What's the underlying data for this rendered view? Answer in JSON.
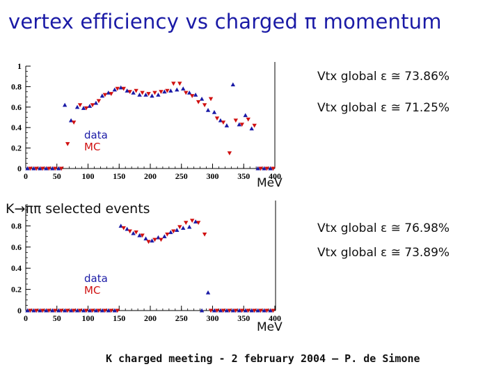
{
  "title": "vertex efficiency vs charged π momentum",
  "subtitle": "K→ππ selected events",
  "footer": "K charged meeting - 2 february 2004 – P. de Simone",
  "colors": {
    "data": "#1a1aa6",
    "mc": "#d01010"
  },
  "chart_data": [
    {
      "type": "scatter",
      "xlabel": "MeV",
      "xlim": [
        0,
        400
      ],
      "ylim": [
        0,
        1
      ],
      "x_ticks": [
        0,
        50,
        100,
        150,
        200,
        250,
        300,
        350,
        400
      ],
      "y_ticks": [
        0,
        0.2,
        0.4,
        0.6,
        0.8,
        1
      ],
      "y_tick_labels": [
        "0",
        "0.2",
        "0.4",
        "0.6",
        "0.8",
        "1"
      ],
      "legend": [
        "data",
        "MC"
      ],
      "annotations": [
        "Vtx global ε ≅ 73.86%",
        "Vtx global ε ≅ 71.25%"
      ],
      "series": [
        {
          "name": "data",
          "marker": "triangle-up",
          "x": [
            5,
            15,
            25,
            35,
            45,
            55,
            65,
            75,
            85,
            95,
            105,
            115,
            125,
            135,
            145,
            155,
            165,
            175,
            185,
            195,
            205,
            215,
            225,
            235,
            245,
            255,
            265,
            275,
            285,
            295,
            305,
            315,
            325,
            335,
            345,
            355,
            365,
            375,
            385,
            395
          ],
          "y": [
            0,
            0,
            0,
            0,
            0,
            0,
            0.62,
            0.47,
            0.6,
            0.59,
            0.61,
            0.64,
            0.71,
            0.74,
            0.77,
            0.79,
            0.76,
            0.74,
            0.72,
            0.72,
            0.71,
            0.72,
            0.75,
            0.76,
            0.77,
            0.78,
            0.74,
            0.72,
            0.68,
            0.57,
            0.55,
            0.47,
            0.42,
            0.82,
            0.43,
            0.52,
            0.39,
            0,
            0,
            0
          ]
        },
        {
          "name": "MC",
          "marker": "triangle-down",
          "x": [
            5,
            15,
            25,
            35,
            45,
            55,
            65,
            75,
            85,
            95,
            105,
            115,
            125,
            135,
            145,
            155,
            165,
            175,
            185,
            195,
            205,
            215,
            225,
            235,
            245,
            255,
            265,
            275,
            285,
            295,
            305,
            315,
            325,
            335,
            345,
            355,
            365,
            375,
            385,
            395
          ],
          "y": [
            0,
            0,
            0,
            0,
            0,
            0,
            0.24,
            0.45,
            0.62,
            0.59,
            0.62,
            0.66,
            0.72,
            0.73,
            0.78,
            0.78,
            0.75,
            0.76,
            0.74,
            0.73,
            0.74,
            0.75,
            0.76,
            0.83,
            0.83,
            0.74,
            0.71,
            0.65,
            0.62,
            0.68,
            0.49,
            0.45,
            0.15,
            0.47,
            0.43,
            0.48,
            0.42,
            0,
            0,
            0
          ]
        }
      ]
    },
    {
      "type": "scatter",
      "xlabel": "MeV",
      "xlim": [
        0,
        400
      ],
      "ylim": [
        0,
        1
      ],
      "x_ticks": [
        0,
        50,
        100,
        150,
        200,
        250,
        300,
        350,
        400
      ],
      "y_ticks": [
        0,
        0.2,
        0.4,
        0.6,
        0.8
      ],
      "y_tick_labels": [
        "0",
        "0.2",
        "0.4",
        "0.6",
        "0.8"
      ],
      "legend": [
        "data",
        "MC"
      ],
      "annotations": [
        "Vtx global ε ≅ 76.98%",
        "Vtx global ε ≅ 73.89%"
      ],
      "series": [
        {
          "name": "data",
          "marker": "triangle-up",
          "x": [
            5,
            15,
            25,
            35,
            45,
            55,
            65,
            75,
            85,
            95,
            105,
            115,
            125,
            135,
            145,
            155,
            165,
            175,
            185,
            195,
            205,
            215,
            225,
            235,
            245,
            255,
            265,
            275,
            285,
            295,
            305,
            315,
            325,
            335,
            345,
            355,
            365,
            375,
            385,
            395
          ],
          "y": [
            0,
            0,
            0,
            0,
            0,
            0,
            0,
            0,
            0,
            0,
            0,
            0,
            0,
            0,
            0,
            0.8,
            0.77,
            0.73,
            0.71,
            0.68,
            0.66,
            0.69,
            0.7,
            0.74,
            0.76,
            0.78,
            0.79,
            0.84,
            0,
            0.17,
            0,
            0,
            0,
            0,
            0,
            0,
            0,
            0,
            0,
            0
          ]
        },
        {
          "name": "MC",
          "marker": "triangle-down",
          "x": [
            5,
            15,
            25,
            35,
            45,
            55,
            65,
            75,
            85,
            95,
            105,
            115,
            125,
            135,
            145,
            155,
            165,
            175,
            185,
            195,
            205,
            215,
            225,
            235,
            245,
            255,
            265,
            275,
            285,
            295,
            305,
            315,
            325,
            335,
            345,
            355,
            365,
            375,
            385,
            395
          ],
          "y": [
            0,
            0,
            0,
            0,
            0,
            0,
            0,
            0,
            0,
            0,
            0,
            0,
            0,
            0,
            0,
            0.78,
            0.75,
            0.74,
            0.71,
            0.65,
            0.67,
            0.67,
            0.72,
            0.75,
            0.79,
            0.83,
            0.85,
            0.83,
            0.72,
            0,
            0,
            0,
            0,
            0,
            0,
            0,
            0,
            0,
            0,
            0
          ]
        }
      ]
    }
  ]
}
